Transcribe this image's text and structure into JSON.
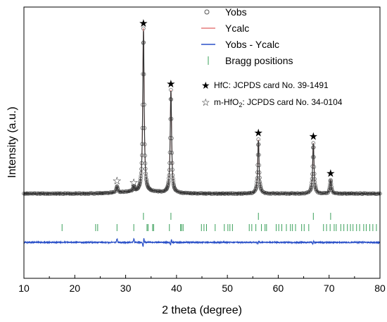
{
  "chart_data": {
    "type": "line",
    "xlabel": "2 theta (degree)",
    "ylabel": "Intensity (a.u.)",
    "xlim": [
      10,
      80
    ],
    "xticks": [
      "10",
      "20",
      "30",
      "40",
      "50",
      "60",
      "70",
      "80"
    ],
    "y_scale": "arbitrary",
    "grid": false,
    "legend_position": "top-right",
    "series": [
      {
        "name": "Yobs",
        "style": "open-circles",
        "color": "#555555",
        "peaks": [
          {
            "x": 28.3,
            "y": 0.035
          },
          {
            "x": 31.6,
            "y": 0.025
          },
          {
            "x": 33.5,
            "y": 0.97
          },
          {
            "x": 38.9,
            "y": 0.61
          },
          {
            "x": 56.1,
            "y": 0.32
          },
          {
            "x": 66.9,
            "y": 0.3
          },
          {
            "x": 70.3,
            "y": 0.08
          }
        ]
      },
      {
        "name": "Ycalc",
        "style": "line",
        "color": "#e06060"
      },
      {
        "name": "Yobs - Ycalc",
        "style": "line",
        "color": "#2a50c8"
      },
      {
        "name": "Bragg positions",
        "style": "vertical-ticks",
        "color": "#3aa05a",
        "hfc_positions": [
          33.5,
          38.9,
          56.1,
          66.9,
          70.3
        ],
        "hfo2_positions": [
          17.5,
          24.1,
          24.5,
          28.3,
          31.6,
          34.2,
          34.4,
          35.3,
          35.5,
          38.6,
          40.8,
          41.0,
          41.3,
          44.9,
          45.4,
          45.9,
          47.6,
          49.4,
          50.1,
          50.5,
          51.0,
          54.3,
          54.8,
          55.6,
          56.7,
          57.4,
          57.7,
          59.6,
          60.1,
          60.7,
          61.6,
          62.4,
          62.8,
          63.4,
          64.6,
          65.1,
          66.0,
          68.9,
          69.5,
          70.2,
          71.0,
          71.4,
          72.3,
          72.9,
          73.6,
          74.2,
          74.7,
          75.4,
          76.0,
          76.8,
          77.3,
          78.0,
          78.6,
          79.3
        ]
      }
    ],
    "phases": [
      {
        "symbol": "★",
        "label": "HfC: JCPDS card No. 39-1491",
        "peak_x": [
          33.5,
          38.9,
          56.1,
          66.9,
          70.3
        ]
      },
      {
        "symbol": "☆",
        "label_prefix": "m-HfO",
        "label_sub": "2",
        "label_suffix": ": JCPDS card No. 34-0104",
        "peak_x": [
          28.3,
          31.6
        ]
      }
    ]
  }
}
